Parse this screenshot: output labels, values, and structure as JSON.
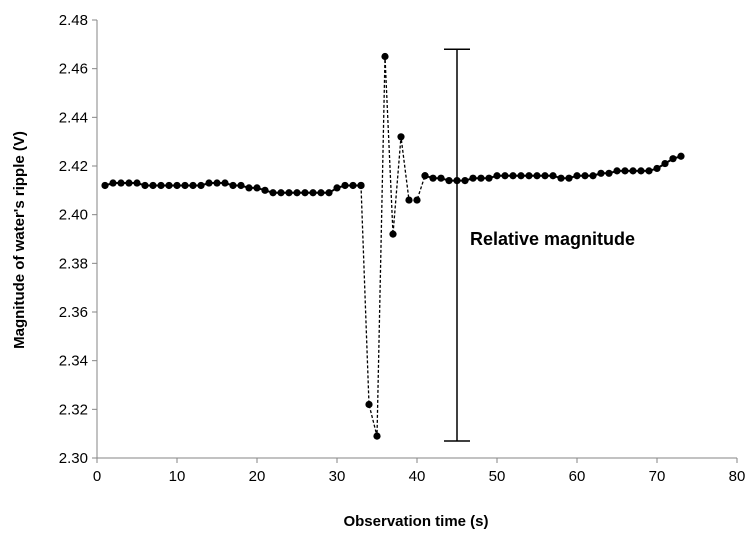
{
  "chart_data": {
    "type": "scatter",
    "title": "",
    "xlabel": "Observation time (s)",
    "ylabel": "Magnitude of water's ripple (V)",
    "xlim": [
      0,
      80
    ],
    "ylim": [
      2.3,
      2.48
    ],
    "xticks": [
      "0",
      "10",
      "20",
      "30",
      "40",
      "50",
      "60",
      "70",
      "80"
    ],
    "yticks": [
      "2.30",
      "2.32",
      "2.34",
      "2.36",
      "2.38",
      "2.40",
      "2.42",
      "2.44",
      "2.46",
      "2.48"
    ],
    "grid": false,
    "series": [
      {
        "marker": "circle",
        "color": "#000000",
        "points": [
          [
            1,
            2.412
          ],
          [
            2,
            2.413
          ],
          [
            3,
            2.413
          ],
          [
            4,
            2.413
          ],
          [
            5,
            2.413
          ],
          [
            6,
            2.412
          ],
          [
            7,
            2.412
          ],
          [
            8,
            2.412
          ],
          [
            9,
            2.412
          ],
          [
            10,
            2.412
          ],
          [
            11,
            2.412
          ],
          [
            12,
            2.412
          ],
          [
            13,
            2.412
          ],
          [
            14,
            2.413
          ],
          [
            15,
            2.413
          ],
          [
            16,
            2.413
          ],
          [
            17,
            2.412
          ],
          [
            18,
            2.412
          ],
          [
            19,
            2.411
          ],
          [
            20,
            2.411
          ],
          [
            21,
            2.41
          ],
          [
            22,
            2.409
          ],
          [
            23,
            2.409
          ],
          [
            24,
            2.409
          ],
          [
            25,
            2.409
          ],
          [
            26,
            2.409
          ],
          [
            27,
            2.409
          ],
          [
            28,
            2.409
          ],
          [
            29,
            2.409
          ],
          [
            30,
            2.411
          ],
          [
            31,
            2.412
          ],
          [
            32,
            2.412
          ],
          [
            33,
            2.412
          ]
        ]
      },
      {
        "marker": "circle",
        "line": "dashed",
        "color": "#000000",
        "points": [
          [
            33,
            2.412
          ],
          [
            34,
            2.322
          ],
          [
            35,
            2.309
          ],
          [
            36,
            2.465
          ],
          [
            37,
            2.392
          ],
          [
            38,
            2.432
          ],
          [
            39,
            2.406
          ],
          [
            40,
            2.406
          ],
          [
            41,
            2.416
          ]
        ]
      },
      {
        "marker": "circle",
        "color": "#000000",
        "points": [
          [
            41,
            2.416
          ],
          [
            42,
            2.415
          ],
          [
            43,
            2.415
          ],
          [
            44,
            2.414
          ],
          [
            45,
            2.414
          ],
          [
            46,
            2.414
          ],
          [
            47,
            2.415
          ],
          [
            48,
            2.415
          ],
          [
            49,
            2.415
          ],
          [
            50,
            2.416
          ],
          [
            51,
            2.416
          ],
          [
            52,
            2.416
          ],
          [
            53,
            2.416
          ],
          [
            54,
            2.416
          ],
          [
            55,
            2.416
          ],
          [
            56,
            2.416
          ],
          [
            57,
            2.416
          ],
          [
            58,
            2.415
          ],
          [
            59,
            2.415
          ],
          [
            60,
            2.416
          ],
          [
            61,
            2.416
          ],
          [
            62,
            2.416
          ],
          [
            63,
            2.417
          ],
          [
            64,
            2.417
          ],
          [
            65,
            2.418
          ],
          [
            66,
            2.418
          ],
          [
            67,
            2.418
          ],
          [
            68,
            2.418
          ],
          [
            69,
            2.418
          ],
          [
            70,
            2.419
          ],
          [
            71,
            2.421
          ],
          [
            72,
            2.423
          ],
          [
            73,
            2.424
          ]
        ]
      }
    ],
    "annotation": {
      "text": "Relative magnitude",
      "x": 45,
      "y_low": 2.307,
      "y_high": 2.468
    }
  }
}
